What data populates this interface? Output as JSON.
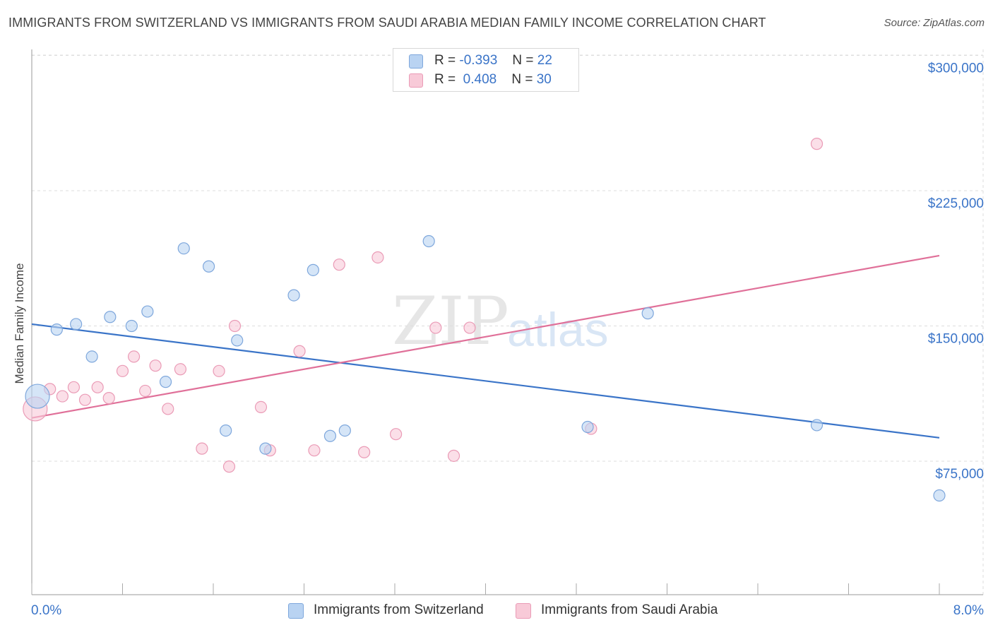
{
  "title": "IMMIGRANTS FROM SWITZERLAND VS IMMIGRANTS FROM SAUDI ARABIA MEDIAN FAMILY INCOME CORRELATION CHART",
  "source": {
    "label": "Source:",
    "value": "ZipAtlas.com"
  },
  "watermark": {
    "zip": "ZIP",
    "atlas": "atlas"
  },
  "legend_top": {
    "rows": [
      {
        "r_label": "R =",
        "r_value": "-0.393",
        "n_label": "N =",
        "n_value": "22"
      },
      {
        "r_label": "R =",
        "r_value": "0.408",
        "n_label": "N =",
        "n_value": "30"
      }
    ]
  },
  "colors": {
    "blue_fill": "#b9d3f2",
    "blue_stroke": "#7ea7dc",
    "blue_line": "#3a74c8",
    "pink_fill": "#f8cad8",
    "pink_stroke": "#ea9bb6",
    "pink_line": "#e07099",
    "axis_text": "#3a74c8",
    "grid": "#dddddd"
  },
  "chart_data": {
    "type": "scatter",
    "title": "IMMIGRANTS FROM SWITZERLAND VS IMMIGRANTS FROM SAUDI ARABIA MEDIAN FAMILY INCOME CORRELATION CHART",
    "xlabel": "",
    "ylabel": "Median Family Income",
    "xlim": [
      0,
      8
    ],
    "ylim": [
      0,
      310000
    ],
    "x_tick_labels": [
      {
        "value": 0,
        "label": "0.0%"
      },
      {
        "value": 8,
        "label": "8.0%"
      }
    ],
    "y_ticks": [
      {
        "value": 75000,
        "label": "$75,000"
      },
      {
        "value": 150000,
        "label": "$150,000"
      },
      {
        "value": 225000,
        "label": "$225,000"
      },
      {
        "value": 300000,
        "label": "$300,000"
      }
    ],
    "grid": true,
    "legend_position": "bottom-center",
    "series": [
      {
        "name": "Immigrants from Switzerland",
        "color": "blue",
        "r": -0.393,
        "n": 22,
        "trend": {
          "x": [
            0,
            8
          ],
          "y": [
            151000,
            88000
          ]
        },
        "points": [
          {
            "x": 0.05,
            "y": 111000,
            "big": true
          },
          {
            "x": 0.22,
            "y": 148000
          },
          {
            "x": 0.39,
            "y": 151000
          },
          {
            "x": 0.53,
            "y": 133000
          },
          {
            "x": 0.69,
            "y": 155000
          },
          {
            "x": 0.88,
            "y": 150000
          },
          {
            "x": 1.02,
            "y": 158000
          },
          {
            "x": 1.18,
            "y": 119000
          },
          {
            "x": 1.34,
            "y": 193000
          },
          {
            "x": 1.56,
            "y": 183000
          },
          {
            "x": 1.71,
            "y": 92000
          },
          {
            "x": 1.81,
            "y": 142000
          },
          {
            "x": 2.06,
            "y": 82000
          },
          {
            "x": 2.31,
            "y": 167000
          },
          {
            "x": 2.48,
            "y": 181000
          },
          {
            "x": 2.63,
            "y": 89000
          },
          {
            "x": 2.76,
            "y": 92000
          },
          {
            "x": 3.5,
            "y": 197000
          },
          {
            "x": 4.9,
            "y": 94000
          },
          {
            "x": 5.43,
            "y": 157000
          },
          {
            "x": 6.92,
            "y": 95000
          },
          {
            "x": 8.0,
            "y": 56000
          }
        ]
      },
      {
        "name": "Immigrants from Saudi Arabia",
        "color": "pink",
        "r": 0.408,
        "n": 30,
        "trend": {
          "x": [
            0,
            8
          ],
          "y": [
            99000,
            189000
          ]
        },
        "points": [
          {
            "x": 0.03,
            "y": 104000,
            "big": true
          },
          {
            "x": 0.16,
            "y": 115000
          },
          {
            "x": 0.27,
            "y": 111000
          },
          {
            "x": 0.37,
            "y": 116000
          },
          {
            "x": 0.47,
            "y": 109000
          },
          {
            "x": 0.58,
            "y": 116000
          },
          {
            "x": 0.68,
            "y": 110000
          },
          {
            "x": 0.8,
            "y": 125000
          },
          {
            "x": 0.9,
            "y": 133000
          },
          {
            "x": 1.0,
            "y": 114000
          },
          {
            "x": 1.09,
            "y": 128000
          },
          {
            "x": 1.2,
            "y": 104000
          },
          {
            "x": 1.31,
            "y": 126000
          },
          {
            "x": 1.5,
            "y": 82000
          },
          {
            "x": 1.65,
            "y": 125000
          },
          {
            "x": 1.74,
            "y": 72000
          },
          {
            "x": 1.79,
            "y": 150000
          },
          {
            "x": 2.02,
            "y": 105000
          },
          {
            "x": 2.1,
            "y": 81000
          },
          {
            "x": 2.36,
            "y": 136000
          },
          {
            "x": 2.49,
            "y": 81000
          },
          {
            "x": 2.71,
            "y": 184000
          },
          {
            "x": 2.93,
            "y": 80000
          },
          {
            "x": 3.05,
            "y": 188000
          },
          {
            "x": 3.21,
            "y": 90000
          },
          {
            "x": 3.56,
            "y": 149000
          },
          {
            "x": 3.72,
            "y": 78000
          },
          {
            "x": 3.86,
            "y": 149000
          },
          {
            "x": 4.93,
            "y": 93000
          },
          {
            "x": 6.92,
            "y": 251000
          }
        ]
      }
    ]
  }
}
